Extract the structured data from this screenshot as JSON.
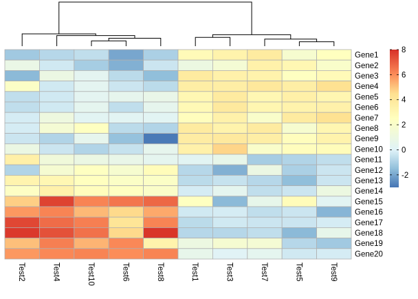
{
  "chart_data": {
    "type": "heatmap",
    "title": "",
    "columns": [
      "Test2",
      "Test4",
      "Test10",
      "Test6",
      "Test8",
      "Test1",
      "Test3",
      "Test7",
      "Test5",
      "Test9"
    ],
    "rows": [
      "Gene1",
      "Gene2",
      "Gene3",
      "Gene4",
      "Gene5",
      "Gene6",
      "Gene7",
      "Gene8",
      "Gene9",
      "Gene10",
      "Gene11",
      "Gene12",
      "Gene13",
      "Gene14",
      "Gene15",
      "Gene16",
      "Gene17",
      "Gene18",
      "Gene19",
      "Gene20"
    ],
    "values": [
      [
        -1.2,
        -0.8,
        -0.6,
        -2.0,
        -1.0,
        2.8,
        3.3,
        3.8,
        1.8,
        2.5
      ],
      [
        0.8,
        -0.3,
        -1.1,
        -1.8,
        -0.4,
        1.0,
        1.6,
        3.4,
        3.0,
        2.0
      ],
      [
        -1.6,
        0.9,
        0.3,
        -0.7,
        -1.5,
        3.8,
        3.4,
        3.3,
        2.4,
        2.8
      ],
      [
        2.2,
        -0.3,
        0.3,
        -0.4,
        -0.7,
        3.6,
        3.6,
        4.0,
        3.6,
        4.4
      ],
      [
        -0.6,
        -0.3,
        0.3,
        0.5,
        0.7,
        3.0,
        3.8,
        3.0,
        3.5,
        3.1
      ],
      [
        -0.6,
        -0.3,
        0.4,
        -0.6,
        0.5,
        2.9,
        3.9,
        3.1,
        3.3,
        3.4
      ],
      [
        -0.2,
        1.1,
        0.2,
        0.2,
        0.2,
        2.6,
        3.4,
        2.0,
        3.8,
        4.4
      ],
      [
        -0.2,
        1.6,
        2.4,
        -0.7,
        -0.9,
        3.8,
        3.3,
        3.8,
        1.8,
        3.1
      ],
      [
        -0.4,
        -0.9,
        0.5,
        -1.4,
        -2.9,
        3.7,
        3.9,
        3.6,
        2.6,
        3.3
      ],
      [
        0.9,
        -0.4,
        -0.9,
        -0.5,
        0.5,
        3.4,
        4.7,
        2.0,
        2.6,
        2.7
      ],
      [
        3.5,
        1.3,
        0.9,
        0.7,
        0.4,
        0.2,
        0.6,
        -1.1,
        -0.9,
        -0.6
      ],
      [
        -0.9,
        1.7,
        2.4,
        1.8,
        2.7,
        -0.8,
        -1.8,
        0.9,
        -1.0,
        -0.4
      ],
      [
        3.2,
        3.0,
        2.5,
        2.2,
        2.2,
        -0.7,
        -0.5,
        -0.8,
        -1.5,
        -0.4
      ],
      [
        2.3,
        3.4,
        2.6,
        2.4,
        2.1,
        -0.2,
        0.4,
        -0.6,
        -0.4,
        1.0
      ],
      [
        4.8,
        7.6,
        6.2,
        6.5,
        6.8,
        2.4,
        -1.6,
        0.6,
        2.7,
        0.2
      ],
      [
        5.8,
        6.2,
        5.2,
        4.6,
        5.5,
        -0.3,
        -0.2,
        -0.6,
        -0.4,
        -1.7
      ],
      [
        7.5,
        6.7,
        6.3,
        4.2,
        6.2,
        -0.7,
        -0.3,
        -0.4,
        -0.4,
        -0.2
      ],
      [
        7.8,
        7.3,
        6.6,
        4.6,
        7.9,
        -0.8,
        -0.8,
        -0.6,
        -1.6,
        0.6
      ],
      [
        5.1,
        6.3,
        5.3,
        6.1,
        3.3,
        1.0,
        1.7,
        1.6,
        -0.8,
        -1.2
      ],
      [
        5.8,
        6.1,
        6.2,
        6.0,
        6.2,
        0.6,
        0.1,
        0.4,
        -0.3,
        -0.2
      ]
    ],
    "color_scale": {
      "min": -3,
      "max": 8,
      "stops": [
        {
          "value": -3,
          "color": "#4575b4"
        },
        {
          "value": -1.5,
          "color": "#91bfdb"
        },
        {
          "value": 0,
          "color": "#e0f3f8"
        },
        {
          "value": 2.5,
          "color": "#ffffbf"
        },
        {
          "value": 4.5,
          "color": "#fee090"
        },
        {
          "value": 6,
          "color": "#fc8d59"
        },
        {
          "value": 8,
          "color": "#d73027"
        }
      ]
    },
    "legend": {
      "ticks": [
        8,
        6,
        4,
        2,
        0,
        -2
      ],
      "tick_labels": [
        "8",
        "6",
        "4",
        "2",
        "0",
        "-2"
      ]
    },
    "grid_color": "#b0b0b0",
    "column_dendrogram": {
      "leaves": [
        "Test2",
        "Test4",
        "Test10",
        "Test6",
        "Test8",
        "Test1",
        "Test3",
        "Test7",
        "Test5",
        "Test9"
      ],
      "merges": [
        {
          "left": "Test5",
          "right": "Test9",
          "height": 1.0
        },
        {
          "left": "Test10",
          "right": "Test6",
          "height": 1.2
        },
        {
          "left": "Test7",
          "right": "M1",
          "height": 1.6
        },
        {
          "left": "Test1",
          "right": "Test3",
          "height": 2.0
        },
        {
          "left": "M2",
          "right": "Test8",
          "height": 1.8
        },
        {
          "left": "Test4",
          "right": "M5",
          "height": 2.4
        },
        {
          "left": "M4",
          "right": "M3",
          "height": 2.6
        },
        {
          "left": "Test2",
          "right": "M6",
          "height": 2.8
        },
        {
          "left": "M8",
          "right": "M7",
          "height": 10.0
        }
      ],
      "max_height": 10.0
    }
  }
}
